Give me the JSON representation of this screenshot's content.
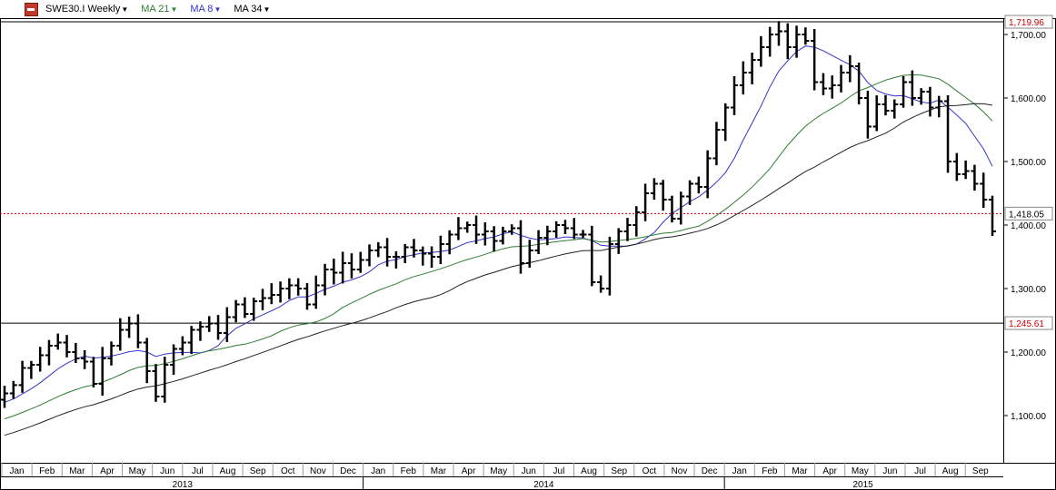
{
  "toolbar": {
    "symbol_label": "SWE30.I Weekly",
    "indicators": [
      {
        "label": "MA 21",
        "color": "#2e7d32"
      },
      {
        "label": "MA 8",
        "color": "#3333cc"
      },
      {
        "label": "MA 34",
        "color": "#222222"
      }
    ]
  },
  "chart_data": {
    "type": "ohlc",
    "symbol": "SWE30.I",
    "interval": "Weekly",
    "ylim": [
      1040,
      1725
    ],
    "y_ticks": [
      1100,
      1200,
      1300,
      1400,
      1500,
      1600,
      1700
    ],
    "y_tick_labels": [
      "1,100.00",
      "1,200.00",
      "1,300.00",
      "1,400.00",
      "1,500.00",
      "1,600.00",
      "1,700.00"
    ],
    "months": [
      "Jan",
      "Feb",
      "Mar",
      "Apr",
      "May",
      "Jun",
      "Jul",
      "Aug",
      "Sep",
      "Oct",
      "Nov",
      "Dec",
      "Jan",
      "Feb",
      "Mar",
      "Apr",
      "May",
      "Jun",
      "Jul",
      "Aug",
      "Sep",
      "Oct",
      "Nov",
      "Dec",
      "Jan",
      "Feb",
      "Mar",
      "Apr",
      "May",
      "Jun",
      "Jul",
      "Aug",
      "Sep"
    ],
    "years": [
      "2013",
      "2014",
      "2015"
    ],
    "horizontal_lines": [
      {
        "value": 1719.96,
        "label": "1,719.96",
        "style": "solid",
        "color": "#000000",
        "label_color": "#cc0000"
      },
      {
        "value": 1418.05,
        "label": "1,418.05",
        "style": "dotted",
        "color": "#cc0000",
        "label_color": "#000000"
      },
      {
        "value": 1245.61,
        "label": "1,245.61",
        "style": "solid",
        "color": "#000000",
        "label_color": "#cc0000"
      }
    ],
    "closes": [
      1135,
      1148,
      1175,
      1180,
      1195,
      1210,
      1215,
      1200,
      1190,
      1185,
      1150,
      1190,
      1210,
      1235,
      1245,
      1215,
      1170,
      1130,
      1180,
      1205,
      1215,
      1235,
      1240,
      1245,
      1230,
      1255,
      1275,
      1260,
      1280,
      1285,
      1290,
      1300,
      1305,
      1300,
      1275,
      1305,
      1330,
      1325,
      1340,
      1330,
      1345,
      1360,
      1365,
      1350,
      1350,
      1365,
      1360,
      1355,
      1350,
      1370,
      1385,
      1395,
      1400,
      1385,
      1390,
      1375,
      1390,
      1395,
      1340,
      1360,
      1380,
      1390,
      1400,
      1395,
      1385,
      1385,
      1310,
      1300,
      1370,
      1390,
      1400,
      1420,
      1450,
      1465,
      1440,
      1410,
      1445,
      1465,
      1460,
      1505,
      1550,
      1585,
      1620,
      1640,
      1660,
      1680,
      1700,
      1705,
      1680,
      1700,
      1690,
      1625,
      1615,
      1620,
      1640,
      1650,
      1600,
      1555,
      1590,
      1580,
      1590,
      1625,
      1600,
      1610,
      1585,
      1595,
      1500,
      1480,
      1485,
      1465,
      1440,
      1390
    ],
    "series": [
      {
        "name": "MA 8",
        "color": "#3333cc",
        "period": 8
      },
      {
        "name": "MA 21",
        "color": "#2e7d32",
        "period": 21
      },
      {
        "name": "MA 34",
        "color": "#222222",
        "period": 34
      }
    ]
  }
}
